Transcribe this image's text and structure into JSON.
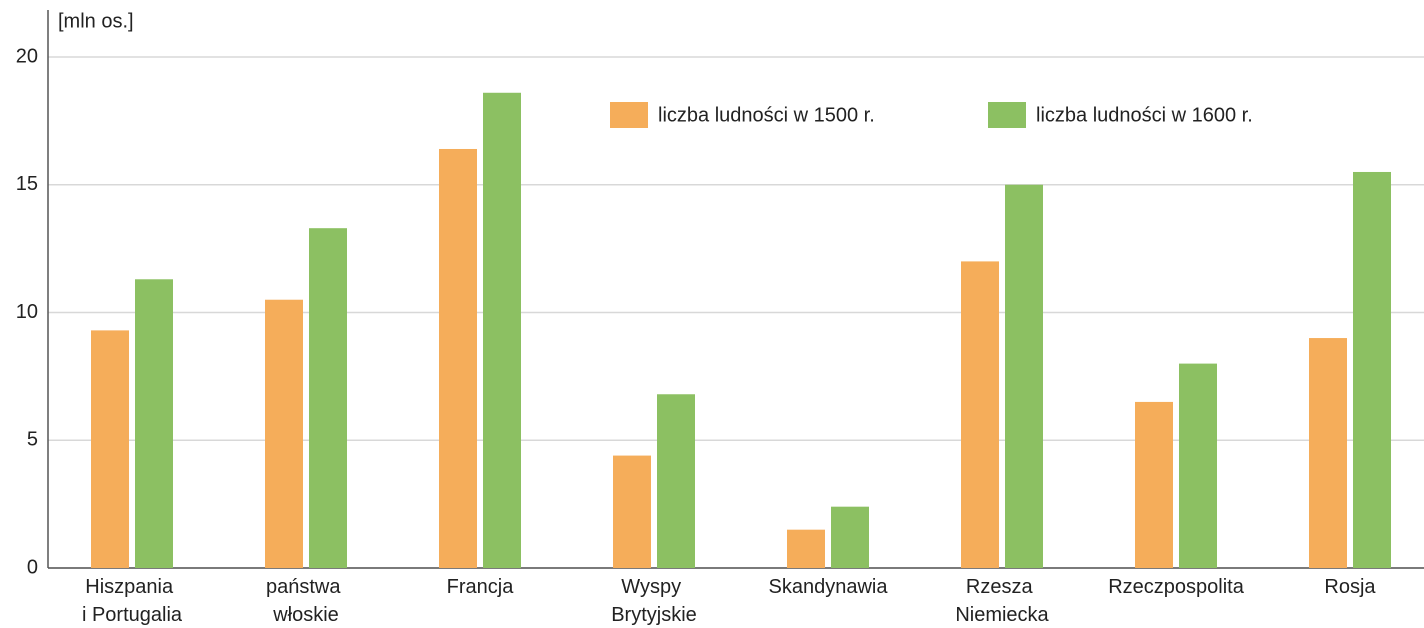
{
  "chart_data": {
    "type": "bar",
    "y_label": "[mln os.]",
    "categories": [
      "Hiszpania i Portugalia",
      "państwa włoskie",
      "Francja",
      "Wyspy Brytyjskie",
      "Skandynawia",
      "Rzesza Niemiecka",
      "Rzeczpospolita",
      "Rosja"
    ],
    "series": [
      {
        "name": "liczba ludności w 1500 r.",
        "color": "#f5ad5a",
        "values": [
          9.3,
          10.5,
          16.4,
          4.4,
          1.5,
          12.0,
          6.5,
          9.0
        ]
      },
      {
        "name": "liczba ludności w 1600 r.",
        "color": "#8cc062",
        "values": [
          11.3,
          13.3,
          18.6,
          6.8,
          2.4,
          15.0,
          8.0,
          15.5
        ]
      }
    ],
    "ylim": [
      0,
      20
    ],
    "yticks": [
      0,
      5,
      10,
      15,
      20
    ],
    "grid": true,
    "legend": "top-right"
  }
}
